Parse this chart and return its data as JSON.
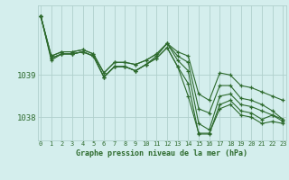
{
  "background_color": "#d4eeed",
  "grid_color": "#b0d0cc",
  "line_color": "#2d6a2d",
  "xlabel": "Graphe pression niveau de la mer (hPa)",
  "yticks": [
    1038,
    1039
  ],
  "xticks": [
    0,
    1,
    2,
    3,
    4,
    5,
    6,
    7,
    8,
    9,
    10,
    11,
    12,
    13,
    14,
    15,
    16,
    17,
    18,
    19,
    20,
    21,
    22,
    23
  ],
  "ylim": [
    1037.45,
    1040.65
  ],
  "xlim": [
    -0.3,
    23.3
  ],
  "lines": [
    [
      1040.4,
      1039.45,
      1039.55,
      1039.55,
      1039.6,
      1039.5,
      1039.05,
      1039.3,
      1039.3,
      1039.25,
      1039.35,
      1039.5,
      1039.75,
      1039.55,
      1039.45,
      1038.55,
      1038.4,
      1039.05,
      1039.0,
      1038.75,
      1038.7,
      1038.6,
      1038.5,
      1038.4
    ],
    [
      1040.4,
      1039.45,
      1039.55,
      1039.55,
      1039.6,
      1039.5,
      1039.05,
      1039.3,
      1039.3,
      1039.25,
      1039.35,
      1039.5,
      1039.75,
      1039.45,
      1039.3,
      1038.2,
      1038.1,
      1038.75,
      1038.75,
      1038.45,
      1038.4,
      1038.3,
      1038.15,
      1037.95
    ],
    [
      1040.4,
      1039.4,
      1039.5,
      1039.5,
      1039.55,
      1039.45,
      1038.95,
      1039.2,
      1039.2,
      1039.1,
      1039.25,
      1039.45,
      1039.75,
      1039.35,
      1039.1,
      1037.85,
      1037.7,
      1038.5,
      1038.55,
      1038.3,
      1038.25,
      1038.15,
      1038.05,
      1037.9
    ],
    [
      1040.4,
      1039.4,
      1039.5,
      1039.5,
      1039.55,
      1039.45,
      1038.95,
      1039.2,
      1039.2,
      1039.1,
      1039.25,
      1039.4,
      1039.65,
      1039.2,
      1038.8,
      1037.6,
      1037.6,
      1038.3,
      1038.4,
      1038.15,
      1038.1,
      1037.95,
      1038.05,
      1037.95
    ],
    [
      1040.4,
      1039.35,
      1039.5,
      1039.5,
      1039.55,
      1039.45,
      1038.95,
      1039.2,
      1039.2,
      1039.1,
      1039.25,
      1039.4,
      1039.65,
      1039.2,
      1038.5,
      1037.62,
      1037.62,
      1038.2,
      1038.3,
      1038.05,
      1038.0,
      1037.85,
      1037.9,
      1037.85
    ]
  ]
}
